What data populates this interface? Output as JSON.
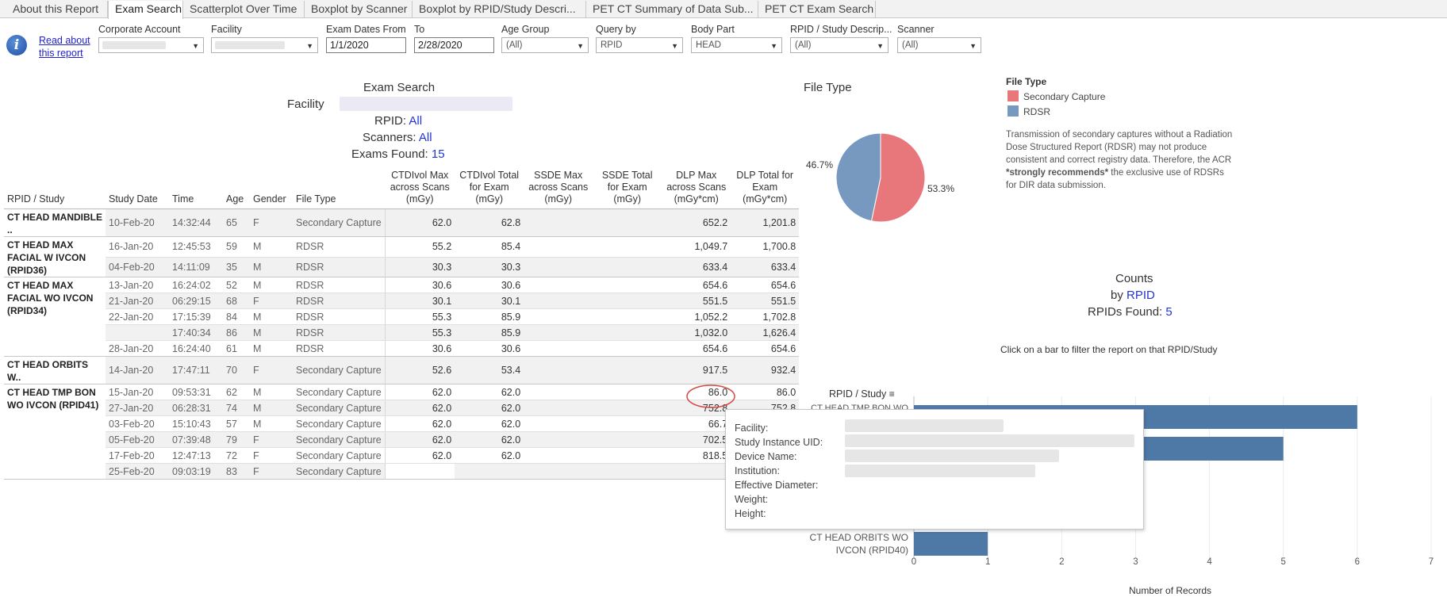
{
  "tabs": [
    {
      "label": "About this Report",
      "active": false
    },
    {
      "label": "Exam Search",
      "active": true
    },
    {
      "label": "Scatterplot Over Time",
      "active": false
    },
    {
      "label": "Boxplot by Scanner",
      "active": false
    },
    {
      "label": "Boxplot by RPID/Study Descri...",
      "active": false
    },
    {
      "label": "PET CT Summary of Data Sub...",
      "active": false
    },
    {
      "label": "PET CT Exam Search",
      "active": false
    }
  ],
  "info": {
    "icon": "info-icon",
    "link_line1": "Read about",
    "link_line2": "this report"
  },
  "filters": {
    "corporate_account": {
      "label": "Corporate Account"
    },
    "facility": {
      "label": "Facility"
    },
    "exam_dates_from": {
      "label": "Exam Dates From",
      "value": "1/1/2020"
    },
    "to": {
      "label": "To",
      "value": "2/28/2020"
    },
    "age_group": {
      "label": "Age Group",
      "value": "(All)"
    },
    "query_by": {
      "label": "Query by",
      "value": "RPID"
    },
    "body_part": {
      "label": "Body Part",
      "value": "HEAD"
    },
    "rpid_study": {
      "label": "RPID / Study Descrip...",
      "value": "(All)"
    },
    "scanner": {
      "label": "Scanner",
      "value": "(All)"
    }
  },
  "summary": {
    "title": "Exam Search",
    "facility_label": "Facility",
    "rpid_label": "RPID:",
    "rpid_value": "All",
    "scanners_label": "Scanners:",
    "scanners_value": "All",
    "exams_label": "Exams Found:",
    "exams_value": "15"
  },
  "table": {
    "headers": {
      "study": "RPID / Study",
      "date": "Study Date",
      "time": "Time",
      "age": "Age",
      "gender": "Gender",
      "filetype": "File Type",
      "ctdi_max": [
        "CTDIvol Max",
        "across Scans",
        "(mGy)"
      ],
      "ctdi_total": [
        "CTDIvol Total",
        "for Exam",
        "(mGy)"
      ],
      "ssde_max": [
        "SSDE Max",
        "across Scans",
        "(mGy)"
      ],
      "ssde_total": [
        "SSDE Total",
        "for Exam",
        "(mGy)"
      ],
      "dlp_max": [
        "DLP Max",
        "across Scans",
        "(mGy*cm)"
      ],
      "dlp_total": [
        "DLP Total for",
        "Exam",
        "(mGy*cm)"
      ]
    },
    "groups": [
      {
        "study": "CT HEAD MANDIBLE ..",
        "rows": [
          {
            "date": "10-Feb-20",
            "time": "14:32:44",
            "age": "65",
            "gender": "F",
            "filetype": "Secondary Capture",
            "ctdi_max": "62.0",
            "ctdi_total": "62.8",
            "ssde_max": "",
            "ssde_total": "",
            "dlp_max": "652.2",
            "dlp_total": "1,201.8"
          }
        ]
      },
      {
        "study": "CT HEAD MAX FACIAL W IVCON (RPID36)",
        "rows": [
          {
            "date": "16-Jan-20",
            "time": "12:45:53",
            "age": "59",
            "gender": "M",
            "filetype": "RDSR",
            "ctdi_max": "55.2",
            "ctdi_total": "85.4",
            "ssde_max": "",
            "ssde_total": "",
            "dlp_max": "1,049.7",
            "dlp_total": "1,700.8"
          },
          {
            "date": "04-Feb-20",
            "time": "14:11:09",
            "age": "35",
            "gender": "M",
            "filetype": "RDSR",
            "ctdi_max": "30.3",
            "ctdi_total": "30.3",
            "ssde_max": "",
            "ssde_total": "",
            "dlp_max": "633.4",
            "dlp_total": "633.4"
          }
        ]
      },
      {
        "study": "CT HEAD MAX FACIAL WO IVCON (RPID34)",
        "rows": [
          {
            "date": "13-Jan-20",
            "time": "16:24:02",
            "age": "52",
            "gender": "M",
            "filetype": "RDSR",
            "ctdi_max": "30.6",
            "ctdi_total": "30.6",
            "ssde_max": "",
            "ssde_total": "",
            "dlp_max": "654.6",
            "dlp_total": "654.6"
          },
          {
            "date": "21-Jan-20",
            "time": "06:29:15",
            "age": "68",
            "gender": "F",
            "filetype": "RDSR",
            "ctdi_max": "30.1",
            "ctdi_total": "30.1",
            "ssde_max": "",
            "ssde_total": "",
            "dlp_max": "551.5",
            "dlp_total": "551.5"
          },
          {
            "date": "22-Jan-20",
            "time": "17:15:39",
            "age": "84",
            "gender": "M",
            "filetype": "RDSR",
            "ctdi_max": "55.3",
            "ctdi_total": "85.9",
            "ssde_max": "",
            "ssde_total": "",
            "dlp_max": "1,052.2",
            "dlp_total": "1,702.8"
          },
          {
            "date": "",
            "time": "17:40:34",
            "age": "86",
            "gender": "M",
            "filetype": "RDSR",
            "ctdi_max": "55.3",
            "ctdi_total": "85.9",
            "ssde_max": "",
            "ssde_total": "",
            "dlp_max": "1,032.0",
            "dlp_total": "1,626.4"
          },
          {
            "date": "28-Jan-20",
            "time": "16:24:40",
            "age": "61",
            "gender": "M",
            "filetype": "RDSR",
            "ctdi_max": "30.6",
            "ctdi_total": "30.6",
            "ssde_max": "",
            "ssde_total": "",
            "dlp_max": "654.6",
            "dlp_total": "654.6"
          }
        ]
      },
      {
        "study": "CT HEAD ORBITS W..",
        "rows": [
          {
            "date": "14-Jan-20",
            "time": "17:47:11",
            "age": "70",
            "gender": "F",
            "filetype": "Secondary Capture",
            "ctdi_max": "52.6",
            "ctdi_total": "53.4",
            "ssde_max": "",
            "ssde_total": "",
            "dlp_max": "917.5",
            "dlp_total": "932.4"
          }
        ]
      },
      {
        "study": "CT HEAD TMP BON WO IVCON (RPID41)",
        "rows": [
          {
            "date": "15-Jan-20",
            "time": "09:53:31",
            "age": "62",
            "gender": "M",
            "filetype": "Secondary Capture",
            "ctdi_max": "62.0",
            "ctdi_total": "62.0",
            "ssde_max": "",
            "ssde_total": "",
            "dlp_max": "86.0",
            "dlp_total": "86.0"
          },
          {
            "date": "27-Jan-20",
            "time": "06:28:31",
            "age": "74",
            "gender": "M",
            "filetype": "Secondary Capture",
            "ctdi_max": "62.0",
            "ctdi_total": "62.0",
            "ssde_max": "",
            "ssde_total": "",
            "dlp_max": "752.8",
            "dlp_total": "752.8"
          },
          {
            "date": "03-Feb-20",
            "time": "15:10:43",
            "age": "57",
            "gender": "M",
            "filetype": "Secondary Capture",
            "ctdi_max": "62.0",
            "ctdi_total": "62.0",
            "ssde_max": "",
            "ssde_total": "",
            "dlp_max": "66.7",
            "dlp_total": "66.7",
            "circled": true
          },
          {
            "date": "05-Feb-20",
            "time": "07:39:48",
            "age": "79",
            "gender": "F",
            "filetype": "Secondary Capture",
            "ctdi_max": "62.0",
            "ctdi_total": "62.0",
            "ssde_max": "",
            "ssde_total": "",
            "dlp_max": "702.5",
            "dlp_total": ""
          },
          {
            "date": "17-Feb-20",
            "time": "12:47:13",
            "age": "72",
            "gender": "F",
            "filetype": "Secondary Capture",
            "ctdi_max": "62.0",
            "ctdi_total": "62.0",
            "ssde_max": "",
            "ssde_total": "",
            "dlp_max": "818.5",
            "dlp_total": ""
          },
          {
            "date": "25-Feb-20",
            "time": "09:03:19",
            "age": "83",
            "gender": "F",
            "filetype": "Secondary Capture",
            "ctdi_max": "",
            "ctdi_total": "",
            "ssde_max": "",
            "ssde_total": "",
            "dlp_max": "",
            "dlp_total": ""
          }
        ]
      }
    ],
    "annotation_color": "#d9443c"
  },
  "tooltip": {
    "rows": [
      "Facility:",
      "Study Instance UID:",
      "Device Name:",
      "Institution:",
      "Effective Diameter:",
      "Weight:",
      "Height:"
    ]
  },
  "filetype_chart": {
    "title": "File Type",
    "legend_title": "File Type",
    "note_html_parts": [
      "Transmission of secondary captures without a Radiation Dose Structured Report (RDSR) may not produce consistent and correct registry data. Therefore, the ACR ",
      "*strongly recommends*",
      " the exclusive use of RDSRs for DIR data submission."
    ],
    "label_left": "46.7%",
    "label_right": "53.3%"
  },
  "counts": {
    "title": "Counts",
    "by_label": "by",
    "by_value": "RPID",
    "found_label": "RPIDs Found:",
    "found_value": "5",
    "hint": "Click on a bar to filter the report on that RPID/Study",
    "axis_header": "RPID / Study",
    "sort_icon": "sort-icon",
    "xlabel": "Number of Records",
    "bar_label_visible_line1": "CT HEAD ORBITS WO",
    "bar_label_visible_line2": "IVCON (RPID40)",
    "bar_label_clipped": "CT HEAD TMP BON WO"
  },
  "chart_data": [
    {
      "type": "pie",
      "title": "File Type",
      "categories": [
        "Secondary Capture",
        "RDSR"
      ],
      "values": [
        53.3,
        46.7
      ],
      "colors": [
        "#e8777b",
        "#7799bf"
      ],
      "legend": "right"
    },
    {
      "type": "bar",
      "orientation": "horizontal",
      "title": "Counts",
      "categories": [
        "CT HEAD TMP BON WO",
        "",
        "",
        "",
        "CT HEAD ORBITS WO IVCON (RPID40)"
      ],
      "values": [
        6,
        5,
        null,
        null,
        1
      ],
      "xlabel": "Number of Records",
      "ylabel": "RPID / Study",
      "xlim": [
        0,
        7
      ],
      "xticks": [
        0,
        1,
        2,
        3,
        4,
        5,
        6,
        7
      ],
      "color": "#4e79a7",
      "grid": true
    }
  ]
}
